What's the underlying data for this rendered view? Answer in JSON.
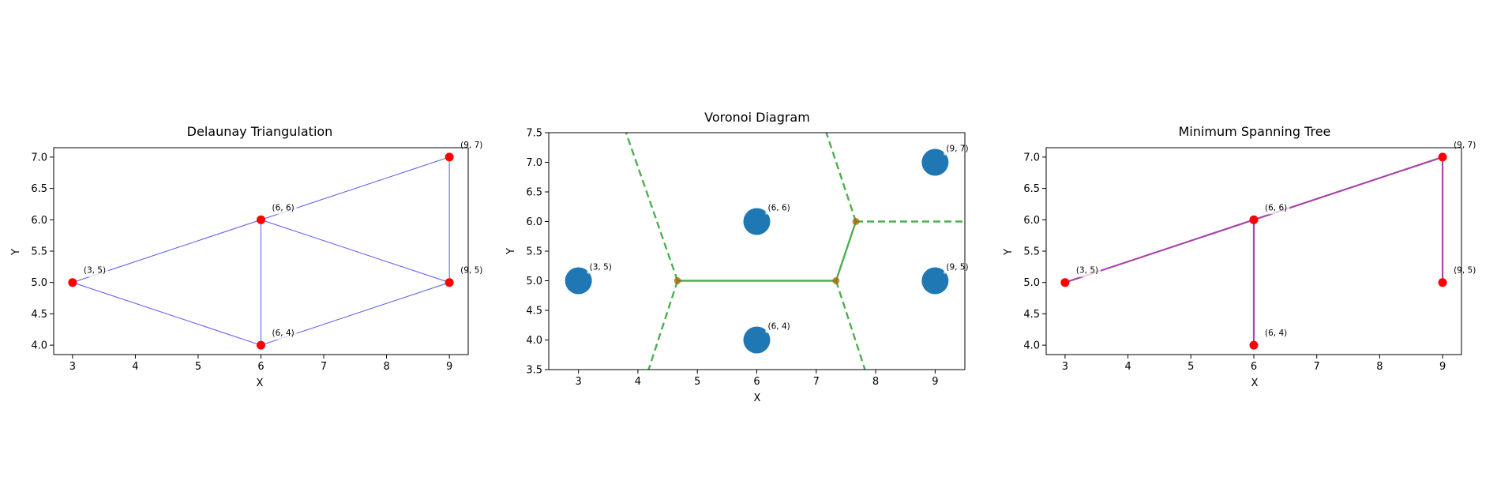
{
  "chart_data": [
    {
      "type": "scatter",
      "title": "Delaunay Triangulation",
      "xlabel": "X",
      "ylabel": "Y",
      "xlim": [
        2.7,
        9.3
      ],
      "ylim": [
        3.85,
        7.15
      ],
      "xticks": [
        3,
        4,
        5,
        6,
        7,
        8,
        9
      ],
      "yticks": [
        4.0,
        4.5,
        5.0,
        5.5,
        6.0,
        6.5,
        7.0
      ],
      "points": [
        {
          "x": 3,
          "y": 5,
          "label": "(3, 5)"
        },
        {
          "x": 6,
          "y": 6,
          "label": "(6, 6)"
        },
        {
          "x": 6,
          "y": 4,
          "label": "(6, 4)"
        },
        {
          "x": 9,
          "y": 7,
          "label": "(9, 7)"
        },
        {
          "x": 9,
          "y": 5,
          "label": "(9, 5)"
        }
      ],
      "point_color": "#ff0000",
      "edges": [
        [
          [
            3,
            5
          ],
          [
            6,
            6
          ]
        ],
        [
          [
            3,
            5
          ],
          [
            6,
            4
          ]
        ],
        [
          [
            6,
            6
          ],
          [
            6,
            4
          ]
        ],
        [
          [
            6,
            6
          ],
          [
            9,
            7
          ]
        ],
        [
          [
            6,
            6
          ],
          [
            9,
            5
          ]
        ],
        [
          [
            6,
            4
          ],
          [
            9,
            5
          ]
        ],
        [
          [
            9,
            7
          ],
          [
            9,
            5
          ]
        ]
      ],
      "edge_color": "#6666ee"
    },
    {
      "type": "scatter",
      "title": "Voronoi Diagram",
      "xlabel": "X",
      "ylabel": "Y",
      "xlim": [
        2.5,
        9.5
      ],
      "ylim": [
        3.5,
        7.5
      ],
      "xticks": [
        3,
        4,
        5,
        6,
        7,
        8,
        9
      ],
      "yticks": [
        3.5,
        4.0,
        4.5,
        5.0,
        5.5,
        6.0,
        6.5,
        7.0,
        7.5
      ],
      "points": [
        {
          "x": 3,
          "y": 5,
          "label": "(3, 5)"
        },
        {
          "x": 6,
          "y": 6,
          "label": "(6, 6)"
        },
        {
          "x": 6,
          "y": 4,
          "label": "(6, 4)"
        },
        {
          "x": 9,
          "y": 7,
          "label": "(9, 7)"
        },
        {
          "x": 9,
          "y": 5,
          "label": "(9, 5)"
        }
      ],
      "point_color": "#1f77b4",
      "vertices": [
        [
          4.667,
          5.0
        ],
        [
          7.333,
          5.0
        ],
        [
          7.667,
          6.0
        ]
      ],
      "vertex_color": "#aa6600",
      "finite_edges": [
        [
          [
            4.667,
            5.0
          ],
          [
            7.333,
            5.0
          ]
        ],
        [
          [
            7.333,
            5.0
          ],
          [
            7.667,
            6.0
          ]
        ]
      ],
      "infinite_edges": [
        [
          [
            4.667,
            5.0
          ],
          [
            3.8,
            7.5
          ]
        ],
        [
          [
            4.667,
            5.0
          ],
          [
            4.18,
            3.5
          ]
        ],
        [
          [
            7.333,
            5.0
          ],
          [
            7.82,
            3.5
          ]
        ],
        [
          [
            7.667,
            6.0
          ],
          [
            7.17,
            7.5
          ]
        ],
        [
          [
            7.667,
            6.0
          ],
          [
            9.5,
            6.0
          ]
        ]
      ],
      "edge_color": "#4caf50"
    },
    {
      "type": "scatter",
      "title": "Minimum Spanning Tree",
      "xlabel": "X",
      "ylabel": "Y",
      "xlim": [
        2.7,
        9.3
      ],
      "ylim": [
        3.85,
        7.15
      ],
      "xticks": [
        3,
        4,
        5,
        6,
        7,
        8,
        9
      ],
      "yticks": [
        4.0,
        4.5,
        5.0,
        5.5,
        6.0,
        6.5,
        7.0
      ],
      "points": [
        {
          "x": 3,
          "y": 5,
          "label": "(3, 5)"
        },
        {
          "x": 6,
          "y": 6,
          "label": "(6, 6)"
        },
        {
          "x": 6,
          "y": 4,
          "label": "(6, 4)"
        },
        {
          "x": 9,
          "y": 7,
          "label": "(9, 7)"
        },
        {
          "x": 9,
          "y": 5,
          "label": "(9, 5)"
        }
      ],
      "point_color": "#ff0000",
      "edges": [
        [
          [
            3,
            5
          ],
          [
            6,
            6
          ]
        ],
        [
          [
            6,
            6
          ],
          [
            9,
            7
          ]
        ],
        [
          [
            6,
            6
          ],
          [
            6,
            4
          ]
        ],
        [
          [
            9,
            7
          ],
          [
            9,
            5
          ]
        ]
      ],
      "edge_color": "#aa44aa"
    }
  ]
}
